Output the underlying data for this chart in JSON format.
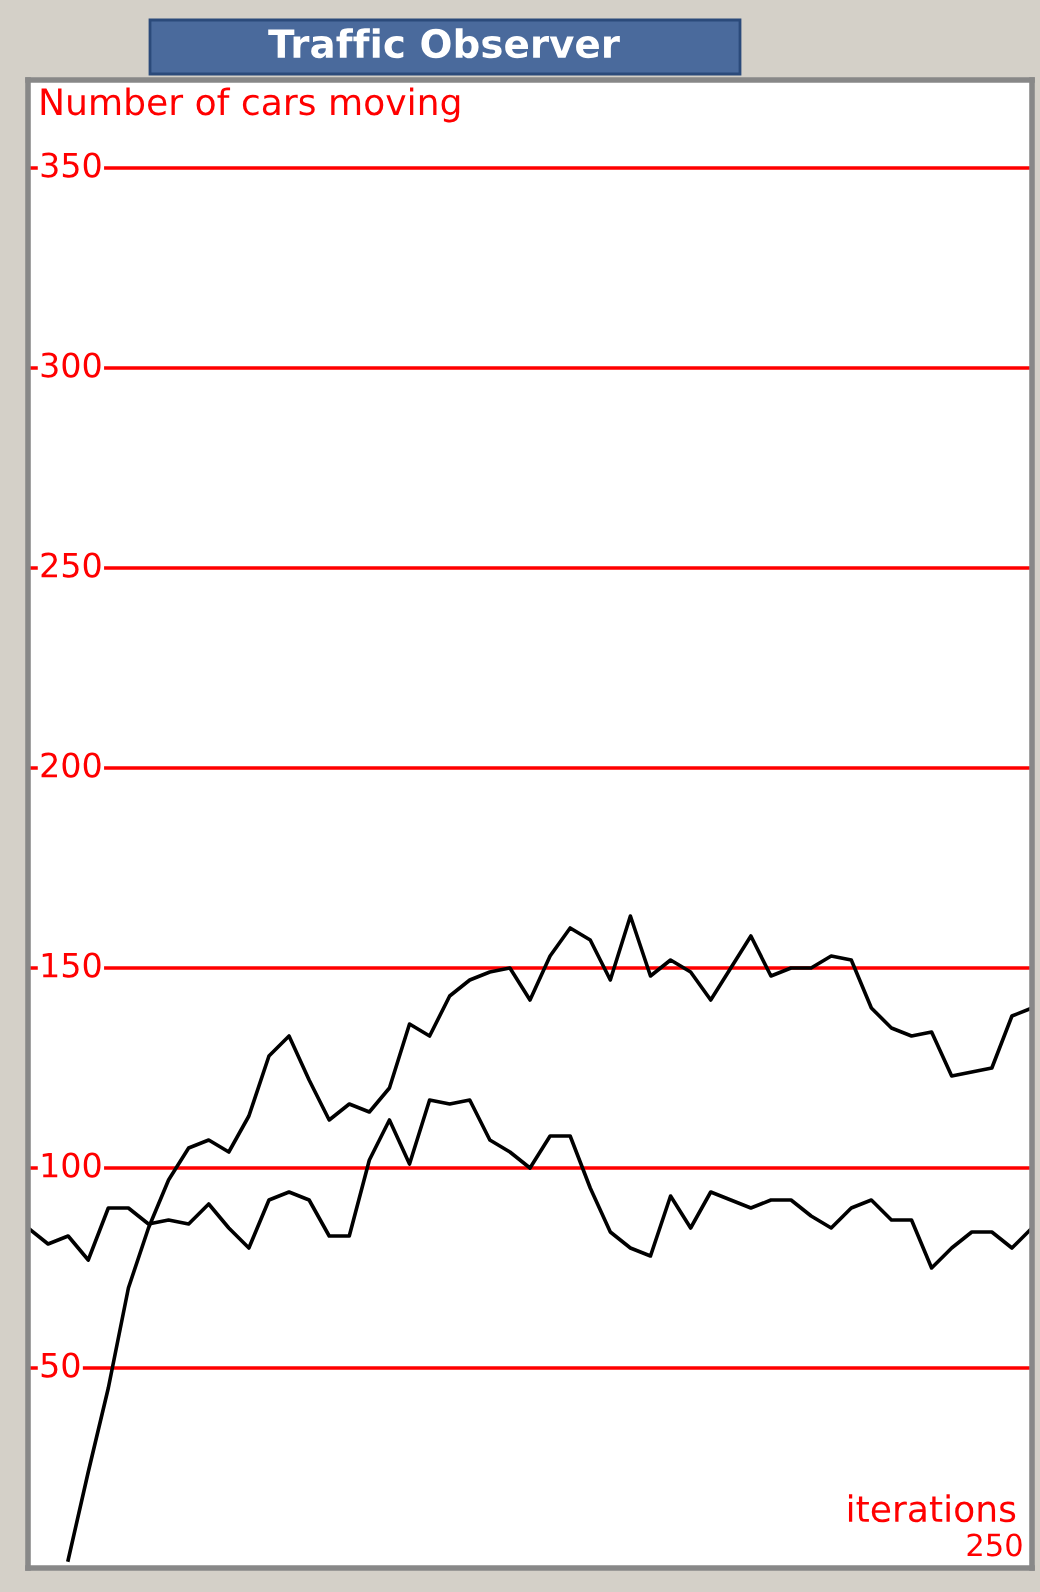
{
  "chart_data": {
    "type": "line",
    "title": "Traffic Observer",
    "ylabel": "Number of cars moving",
    "xlabel": "iterations",
    "annotations": [
      "250"
    ],
    "ylim": [
      0,
      372
    ],
    "yticks": [
      50,
      100,
      150,
      200,
      250,
      300,
      350
    ],
    "grid": "y",
    "categories": [
      null,
      null,
      null,
      null,
      null,
      null,
      null,
      null,
      null,
      null,
      null,
      null,
      null,
      null,
      null,
      null,
      null,
      null,
      null,
      null,
      null,
      null,
      null,
      null,
      null,
      null,
      null,
      null,
      null,
      null,
      null,
      null,
      null,
      null,
      null,
      null,
      null,
      null,
      null,
      null,
      null,
      null,
      null,
      null,
      null,
      null,
      null,
      null,
      null,
      null,
      null
    ],
    "series": [
      {
        "color": "#000000",
        "values": [
          null,
          null,
          2,
          24,
          45,
          70,
          85,
          97,
          105,
          107,
          104,
          113,
          128,
          133,
          122,
          112,
          116,
          114,
          120,
          136,
          133,
          143,
          147,
          149,
          150,
          142,
          153,
          160,
          157,
          147,
          163,
          148,
          152,
          149,
          142,
          150,
          158,
          148,
          150,
          150,
          153,
          152,
          140,
          135,
          133,
          134,
          123,
          124,
          125,
          138,
          140
        ]
      },
      {
        "color": "#000000",
        "values": [
          85,
          81,
          83,
          77,
          90,
          90,
          86,
          87,
          86,
          91,
          85,
          80,
          92,
          94,
          92,
          83,
          83,
          102,
          112,
          101,
          117,
          116,
          117,
          107,
          104,
          100,
          108,
          108,
          95,
          84,
          80,
          78,
          93,
          85,
          94,
          92,
          90,
          92,
          92,
          88,
          85,
          90,
          92,
          87,
          87,
          75,
          80,
          84,
          84,
          80,
          85
        ]
      }
    ]
  }
}
